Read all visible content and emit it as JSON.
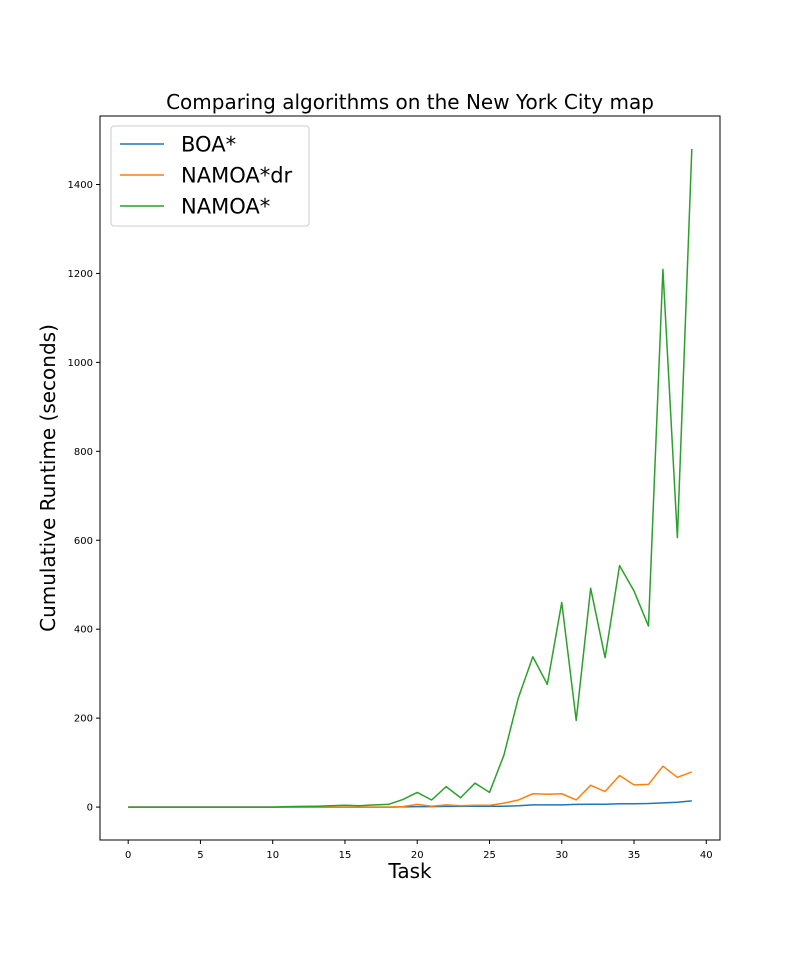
{
  "chart_data": {
    "type": "line",
    "title": "Comparing algorithms on the New York City map",
    "xlabel": "Task",
    "ylabel": "Cumulative Runtime (seconds)",
    "xlim": [
      -1.95,
      40.95
    ],
    "ylim": [
      -74,
      1554
    ],
    "xticks": [
      0,
      5,
      10,
      15,
      20,
      25,
      30,
      35,
      40
    ],
    "yticks": [
      0,
      200,
      400,
      600,
      800,
      1000,
      1200,
      1400
    ],
    "legend_position": "upper-left",
    "x": [
      0,
      1,
      2,
      3,
      4,
      5,
      6,
      7,
      8,
      9,
      10,
      11,
      12,
      13,
      14,
      15,
      16,
      17,
      18,
      19,
      20,
      21,
      22,
      23,
      24,
      25,
      26,
      27,
      28,
      29,
      30,
      31,
      32,
      33,
      34,
      35,
      36,
      37,
      38,
      39
    ],
    "series": [
      {
        "name": "BOA*",
        "color": "#1f77b4",
        "values": [
          0,
          0,
          0,
          0,
          0,
          0,
          0,
          0,
          0,
          0,
          0,
          0,
          0,
          0,
          0,
          0,
          0,
          0,
          0,
          0.5,
          1,
          1,
          1.5,
          1.5,
          2,
          2,
          2,
          3,
          5,
          5,
          5,
          6,
          6.5,
          6.5,
          7.5,
          7.5,
          8,
          9.5,
          11,
          14
        ]
      },
      {
        "name": "NAMOA*dr",
        "color": "#ff7f0e",
        "values": [
          0,
          0,
          0,
          0,
          0,
          0,
          0,
          0,
          0,
          0,
          0,
          0,
          0,
          0,
          0,
          0,
          0,
          0,
          0,
          1,
          6,
          2,
          5,
          3,
          4,
          4,
          9,
          16,
          30,
          29,
          30,
          16,
          49,
          35,
          71,
          50,
          51,
          92,
          67,
          79
        ]
      },
      {
        "name": "NAMOA*",
        "color": "#2ca02c",
        "values": [
          0,
          0,
          0,
          0,
          0,
          0,
          0,
          0,
          0,
          0,
          0,
          1,
          1.5,
          2,
          3,
          4,
          3,
          5,
          6,
          17,
          33,
          16,
          46,
          21,
          54,
          33,
          117,
          246,
          338,
          276,
          460,
          195,
          492,
          336,
          543,
          486,
          407,
          1209,
          606,
          1480
        ]
      }
    ]
  }
}
